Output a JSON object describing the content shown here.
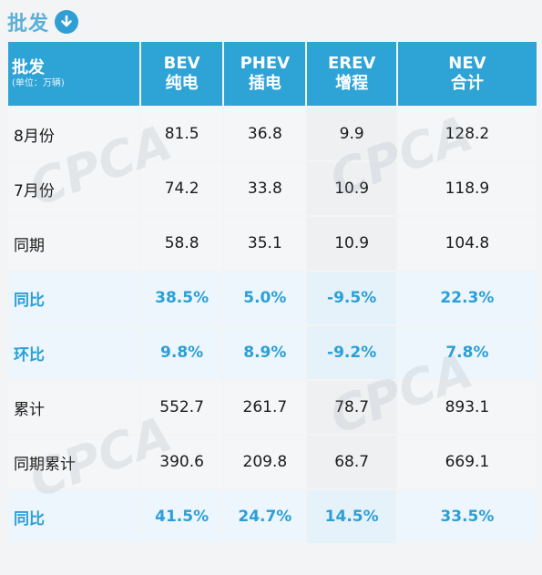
{
  "title": "批发",
  "header": {
    "col0": {
      "main": "批发",
      "sub": "(单位：万辆)"
    },
    "cols": [
      {
        "line1": "BEV",
        "line2": "纯电"
      },
      {
        "line1": "PHEV",
        "line2": "插电"
      },
      {
        "line1": "EREV",
        "line2": "增程"
      },
      {
        "line1": "NEV",
        "line2": "合计"
      }
    ]
  },
  "rows": [
    {
      "label": "8月份",
      "values": [
        "81.5",
        "36.8",
        "9.9",
        "128.2"
      ],
      "highlight": false
    },
    {
      "label": "7月份",
      "values": [
        "74.2",
        "33.8",
        "10.9",
        "118.9"
      ],
      "highlight": false
    },
    {
      "label": "同期",
      "values": [
        "58.8",
        "35.1",
        "10.9",
        "104.8"
      ],
      "highlight": false
    },
    {
      "label": "同比",
      "values": [
        "38.5%",
        "5.0%",
        "-9.5%",
        "22.3%"
      ],
      "highlight": true
    },
    {
      "label": "环比",
      "values": [
        "9.8%",
        "8.9%",
        "-9.2%",
        "7.8%"
      ],
      "highlight": true
    },
    {
      "label": "累计",
      "values": [
        "552.7",
        "261.7",
        "78.7",
        "893.1"
      ],
      "highlight": false
    },
    {
      "label": "同期累计",
      "values": [
        "390.6",
        "209.8",
        "68.7",
        "669.1"
      ],
      "highlight": false
    },
    {
      "label": "同比",
      "values": [
        "41.5%",
        "24.7%",
        "14.5%",
        "33.5%"
      ],
      "highlight": true
    }
  ],
  "watermark": "CPCA",
  "colors": {
    "header_bg": "#2ea3d6",
    "highlight_text": "#2b9fd8",
    "title": "#5bb0d8"
  },
  "icons": {
    "title_icon": "down-arrow-circle-icon"
  }
}
